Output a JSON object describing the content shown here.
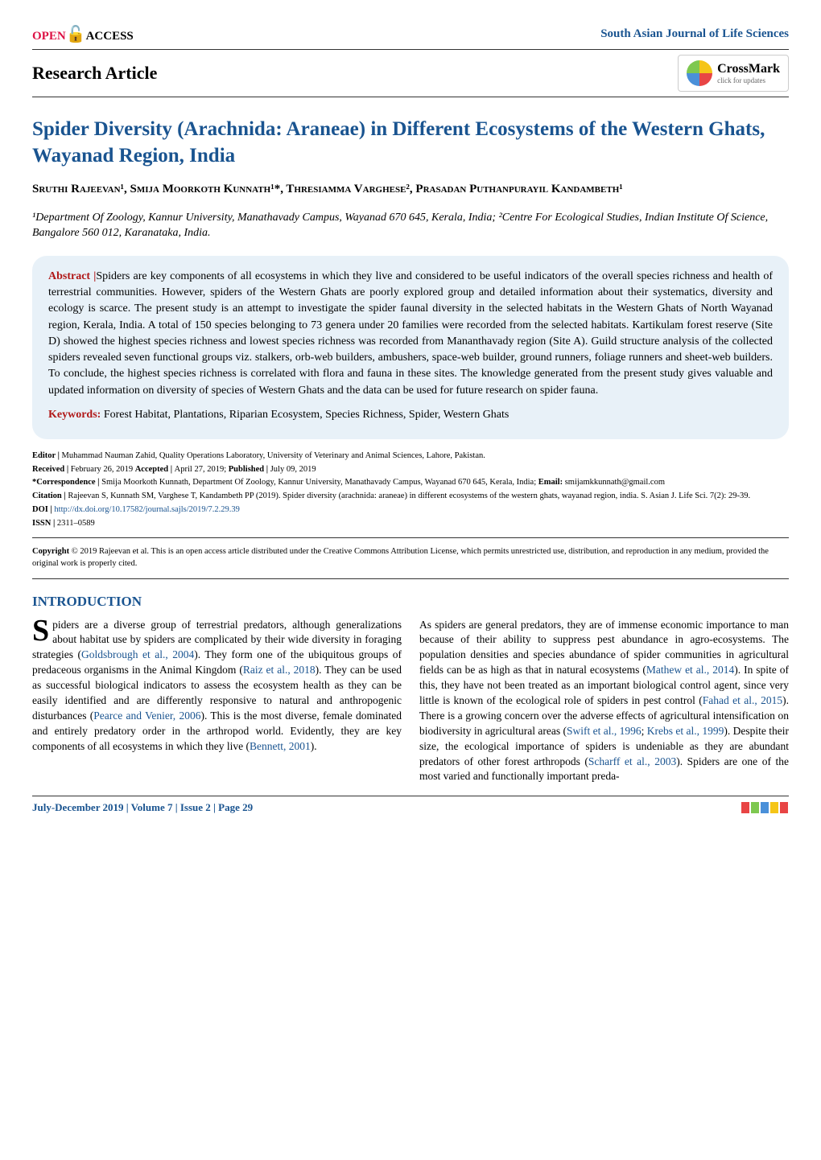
{
  "header": {
    "open_text": "OPEN",
    "access_text": "ACCESS",
    "journal_name": "South Asian Journal of Life Sciences",
    "article_type": "Research Article",
    "crossmark_label": "CrossMark",
    "crossmark_sub": "click for updates"
  },
  "title": "Spider Diversity (Arachnida: Araneae) in Different Ecosystems of the Western Ghats, Wayanad Region, India",
  "authors": "Sruthi Rajeevan¹, Smija Moorkoth Kunnath¹*, Thresiamma Varghese², Prasadan Puthanpurayil Kandambeth¹",
  "affiliations": "¹Department Of Zoology, Kannur University, Manathavady Campus, Wayanad 670 645, Kerala, India; ²Centre For Ecological Studies, Indian Institute Of Science, Bangalore 560 012, Karanataka, India.",
  "abstract": {
    "label": "Abstract |",
    "text": "Spiders are key components of all ecosystems in which they live and considered to be useful indicators of the overall species richness and health of terrestrial communities. However, spiders of the Western Ghats are poorly explored group and detailed information about their systematics, diversity and ecology is scarce. The present study is an attempt to investigate the spider faunal diversity in the selected habitats in the Western Ghats of North Wayanad region, Kerala, India. A total of 150 species belonging to 73 genera under 20 families were recorded from the selected habitats. Kartikulam forest reserve (Site D) showed the highest species richness and lowest species richness was recorded from Mananthavady region (Site A). Guild structure analysis of the collected spiders revealed seven functional groups viz. stalkers, orb-web builders, ambushers, space-web builder, ground runners, foliage runners and sheet-web builders. To conclude, the highest species richness is correlated with flora and fauna in these sites. The knowledge generated from the present study gives valuable and updated information on diversity of species of Western Ghats and the data can be used for future research on spider fauna.",
    "keywords_label": "Keywords:",
    "keywords_text": " Forest Habitat, Plantations, Riparian Ecosystem, Species Richness, Spider, Western Ghats"
  },
  "meta": {
    "editor": {
      "label": "Editor | ",
      "text": "Muhammad Nauman Zahid, Quality Operations Laboratory, University of Veterinary and Animal Sciences, Lahore, Pakistan."
    },
    "received": {
      "label": "Received | ",
      "text": "February 26, 2019 "
    },
    "accepted": {
      "label": "Accepted | ",
      "text": "April 27, 2019; "
    },
    "published": {
      "label": "Published | ",
      "text": "July 09, 2019"
    },
    "correspondence": {
      "label": "*Correspondence | ",
      "text": "Smija Moorkoth Kunnath, Department Of Zoology, Kannur University, Manathavady Campus, Wayanad 670 645, Kerala, India; "
    },
    "email": {
      "label": "Email: ",
      "text": "smijamkkunnath@gmail.com"
    },
    "citation": {
      "label": "Citation | ",
      "text": "Rajeevan S, Kunnath SM, Varghese T, Kandambeth PP (2019). Spider diversity (arachnida: araneae) in different ecosystems of the western ghats, wayanad region, india. S. Asian J. Life Sci. 7(2): 29-39."
    },
    "doi": {
      "label": "DOI | ",
      "link": "http://dx.doi.org/10.17582/journal.sajls/2019/7.2.29.39"
    },
    "issn": {
      "label": "ISSN | ",
      "text": "2311–0589"
    }
  },
  "copyright": {
    "label": "Copyright ",
    "text": "© 2019 Rajeevan et al. This is an open access article distributed under the Creative Commons Attribution License, which permits unrestricted use, distribution, and reproduction in any medium, provided the original work is properly cited."
  },
  "section_heading": "INTRODUCTION",
  "body": {
    "col1": {
      "dropcap": "S",
      "seg1": "piders are a diverse group of terrestrial predators, although generalizations about habitat use by spiders are complicated by their wide diversity in foraging strategies (",
      "cite1": "Goldsbrough et al., 2004",
      "seg2": "). They form one of the ubiquitous groups of predaceous organisms in the Animal Kingdom (",
      "cite2": "Raiz et al., 2018",
      "seg3": "). They can be used as successful biological indicators to assess the ecosystem health as they can be easily identified and are differently responsive to natural and anthropogenic disturbances (",
      "cite3": "Pearce and Venier, 2006",
      "seg4": "). This is the most diverse, female dominated and entirely predatory order in the arthropod world. Evidently, they are key components of all ecosystems in which they live (",
      "cite4": "Bennett, 2001",
      "seg5": ")."
    },
    "col2": {
      "seg1": "As spiders are general predators, they are of immense economic importance to man because of their ability to suppress pest abundance in agro-ecosystems. The population densities and species abundance of spider communities in agricultural fields can be as high as that in natural ecosystems (",
      "cite1": "Mathew et al., 2014",
      "seg2": "). In spite of this, they have not been treated as an important biological control agent, since very little is known of the ecological role of spiders in pest control (",
      "cite2": "Fahad et al., 2015",
      "seg3": "). There is a growing concern over the adverse effects of agricultural intensification on biodiversity in agricultural areas (",
      "cite3": "Swift et al., 1996",
      "seg4": "; ",
      "cite4": "Krebs et al., 1999",
      "seg5": "). Despite their size, the ecological importance of spiders is undeniable as they are abundant predators of other forest arthropods (",
      "cite5": "Scharff et al., 2003",
      "seg6": "). Spiders are one of the most varied and functionally important preda-"
    }
  },
  "footer": {
    "left": "July-December 2019 | Volume 7 | Issue 2 | Page 29",
    "logo_colors": [
      "#e84545",
      "#7ec850",
      "#4a90d9",
      "#f5c518",
      "#e84545"
    ]
  },
  "colors": {
    "brand_blue": "#1a5490",
    "abstract_bg": "#e8f1f8",
    "keyword_red": "#b01818"
  }
}
